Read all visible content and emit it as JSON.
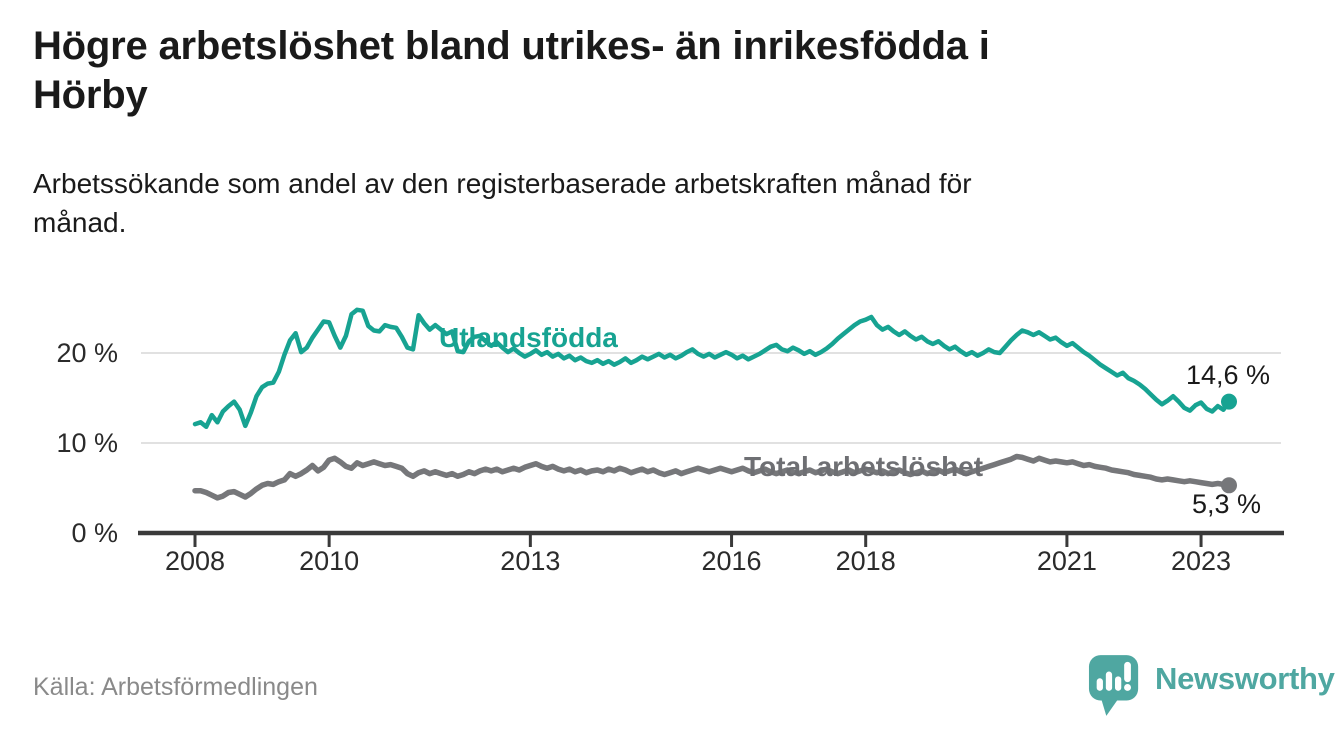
{
  "header": {
    "title": "Högre arbetslöshet bland utrikes- än inrikesfödda i\nHörby",
    "subtitle": "Arbetssökande som andel av den registerbaserade arbetskraften månad för\nmånad."
  },
  "chart_data": {
    "type": "line",
    "title": "Högre arbetslöshet bland utrikes- än inrikesfödda i Hörby",
    "subtitle": "Arbetssökande som andel av den registerbaserade arbetskraften månad för månad.",
    "xlabel": "",
    "ylabel": "",
    "frequency": "monthly",
    "x_start": "2008-01",
    "x_end": "2023-06",
    "xlim": [
      2007.2,
      2024.2
    ],
    "ylim": [
      0,
      26
    ],
    "grid": "horizontal",
    "y_ticks": [
      0,
      10,
      20
    ],
    "y_tick_labels": [
      "0 %",
      "10 %",
      "20 %"
    ],
    "x_ticks": [
      2008,
      2010,
      2013,
      2016,
      2018,
      2021,
      2023
    ],
    "x_tick_labels": [
      "2008",
      "2010",
      "2013",
      "2016",
      "2018",
      "2021",
      "2023"
    ],
    "series": [
      {
        "name": "Utlandsfödda",
        "color": "#17a392",
        "end_label": "14,6 %",
        "end_value": 14.6,
        "values": [
          12.1,
          12.3,
          11.8,
          13.1,
          12.3,
          13.5,
          14.1,
          14.6,
          13.7,
          11.9,
          13.4,
          15.2,
          16.2,
          16.6,
          16.7,
          17.9,
          19.8,
          21.4,
          22.2,
          20.1,
          20.6,
          21.7,
          22.6,
          23.5,
          23.4,
          21.9,
          20.6,
          21.9,
          24.3,
          24.8,
          24.7,
          23.0,
          22.5,
          22.4,
          23.1,
          22.9,
          22.8,
          21.8,
          20.6,
          20.4,
          24.2,
          23.3,
          22.6,
          23.1,
          22.6,
          22.1,
          22.4,
          20.2,
          20.1,
          21.3,
          21.8,
          21.9,
          21.3,
          20.8,
          21.2,
          20.6,
          20.1,
          20.5,
          20.0,
          19.6,
          19.9,
          20.3,
          19.8,
          20.1,
          19.6,
          19.9,
          19.4,
          19.7,
          19.2,
          19.5,
          19.1,
          18.9,
          19.2,
          18.8,
          19.1,
          18.7,
          19.0,
          19.4,
          18.9,
          19.2,
          19.6,
          19.3,
          19.6,
          19.9,
          19.5,
          19.8,
          19.4,
          19.7,
          20.1,
          20.4,
          19.9,
          19.6,
          19.9,
          19.5,
          19.8,
          20.1,
          19.8,
          19.4,
          19.7,
          19.3,
          19.6,
          19.9,
          20.3,
          20.7,
          20.9,
          20.4,
          20.2,
          20.6,
          20.3,
          19.9,
          20.2,
          19.8,
          20.1,
          20.5,
          21.0,
          21.6,
          22.1,
          22.6,
          23.1,
          23.5,
          23.7,
          24.0,
          23.1,
          22.6,
          22.9,
          22.4,
          22.0,
          22.4,
          21.9,
          21.5,
          21.8,
          21.3,
          21.0,
          21.3,
          20.8,
          20.4,
          20.7,
          20.2,
          19.8,
          20.1,
          19.7,
          20.0,
          20.4,
          20.1,
          20.0,
          20.7,
          21.4,
          22.0,
          22.5,
          22.3,
          22.0,
          22.3,
          21.9,
          21.5,
          21.7,
          21.2,
          20.8,
          21.1,
          20.6,
          20.1,
          19.7,
          19.2,
          18.7,
          18.3,
          17.9,
          17.5,
          17.8,
          17.2,
          16.9,
          16.5,
          16.0,
          15.4,
          14.8,
          14.3,
          14.7,
          15.2,
          14.6,
          13.9,
          13.6,
          14.2,
          14.5,
          13.8,
          13.5,
          14.1,
          13.7,
          14.6
        ]
      },
      {
        "name": "Total arbetslöshet",
        "color": "#76777a",
        "end_label": "5,3 %",
        "end_value": 5.3,
        "values": [
          4.7,
          4.7,
          4.5,
          4.2,
          3.9,
          4.1,
          4.5,
          4.6,
          4.3,
          4.0,
          4.4,
          4.9,
          5.3,
          5.5,
          5.4,
          5.7,
          5.9,
          6.6,
          6.3,
          6.6,
          7.0,
          7.5,
          6.9,
          7.3,
          8.1,
          8.3,
          7.9,
          7.4,
          7.2,
          7.8,
          7.5,
          7.7,
          7.9,
          7.7,
          7.5,
          7.6,
          7.4,
          7.2,
          6.6,
          6.3,
          6.7,
          6.9,
          6.6,
          6.8,
          6.6,
          6.4,
          6.6,
          6.3,
          6.5,
          6.8,
          6.6,
          6.9,
          7.1,
          6.9,
          7.1,
          6.8,
          7.0,
          7.2,
          7.0,
          7.3,
          7.5,
          7.7,
          7.4,
          7.2,
          7.4,
          7.1,
          6.9,
          7.1,
          6.8,
          7.0,
          6.7,
          6.9,
          7.0,
          6.8,
          7.1,
          6.9,
          7.2,
          7.0,
          6.7,
          6.9,
          7.1,
          6.8,
          7.0,
          6.7,
          6.5,
          6.7,
          6.9,
          6.6,
          6.8,
          7.0,
          7.2,
          7.0,
          6.8,
          7.0,
          7.2,
          7.0,
          6.8,
          7.0,
          7.2,
          6.9,
          6.7,
          6.9,
          7.1,
          6.8,
          6.6,
          6.8,
          7.0,
          6.8,
          6.6,
          6.8,
          7.0,
          6.7,
          6.9,
          7.1,
          6.8,
          6.6,
          6.8,
          7.0,
          6.7,
          6.9,
          7.1,
          6.9,
          6.7,
          6.9,
          6.6,
          6.8,
          7.0,
          6.7,
          6.5,
          6.7,
          6.9,
          6.6,
          6.8,
          7.0,
          6.7,
          6.9,
          7.1,
          6.8,
          6.6,
          6.8,
          7.0,
          7.2,
          7.4,
          7.6,
          7.8,
          8.0,
          8.2,
          8.5,
          8.4,
          8.2,
          8.0,
          8.3,
          8.1,
          7.9,
          8.0,
          7.9,
          7.8,
          7.9,
          7.7,
          7.5,
          7.6,
          7.4,
          7.3,
          7.2,
          7.0,
          6.9,
          6.8,
          6.7,
          6.5,
          6.4,
          6.3,
          6.2,
          6.0,
          5.9,
          6.0,
          5.9,
          5.8,
          5.7,
          5.8,
          5.7,
          5.6,
          5.5,
          5.4,
          5.5,
          5.4,
          5.3
        ]
      }
    ],
    "legend_position": "inline-labels"
  },
  "footer": {
    "source": "Källa: Arbetsförmedlingen",
    "brand": "Newsworthy"
  },
  "icons": {
    "brand_icon": "newsworthy-speech-bubble-barchart-icon"
  },
  "colors": {
    "accent_teal": "#17a392",
    "series_gray": "#76777a",
    "brand_teal": "#4fa7a1",
    "grid": "#e1e1e1",
    "axis": "#3a3a3a",
    "text": "#1a1a1a",
    "tick_text": "#2b2b2b",
    "source_text": "#8a8a8a",
    "background": "#ffffff"
  }
}
